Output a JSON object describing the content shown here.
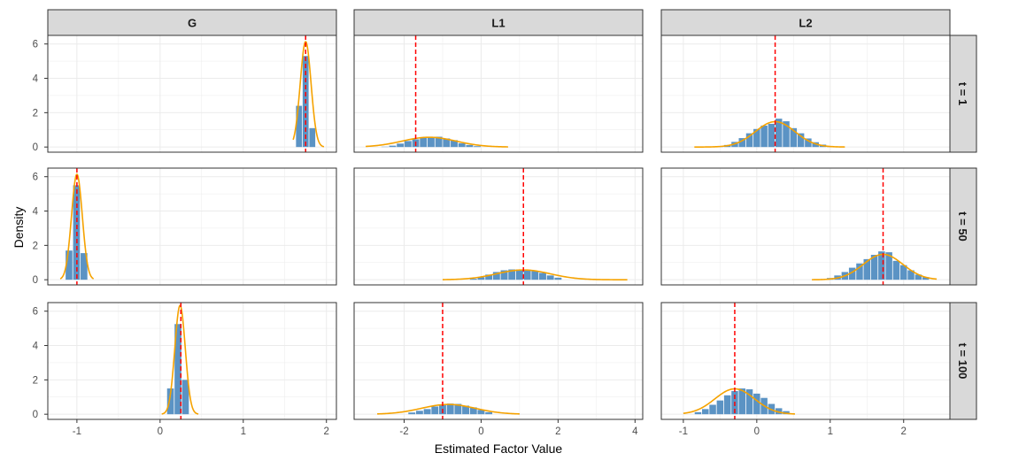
{
  "chart_data": {
    "type": "histogram-facet",
    "xlabel": "Estimated Factor Value",
    "ylabel": "Density",
    "colors": {
      "bars": "#5b93c4",
      "density": "#f5a200",
      "reference": "#ff0000",
      "strip_fill": "#d9d9d9",
      "grid": "#ebebeb",
      "panel_border": "#333333"
    },
    "y_ticks": [
      "0",
      "2",
      "4",
      "6"
    ],
    "ylim": [
      -0.3,
      6.5
    ],
    "columns": [
      {
        "label": "G",
        "xlim": [
          -1.35,
          2.12
        ],
        "x_ticks": [
          -1,
          0,
          1,
          2
        ],
        "x_tick_labels": [
          "-1",
          "0",
          "1",
          "2"
        ]
      },
      {
        "label": "L1",
        "xlim": [
          -3.3,
          4.2
        ],
        "x_ticks": [
          -2,
          0,
          2,
          4
        ],
        "x_tick_labels": [
          "-2",
          "0",
          "2",
          "4"
        ]
      },
      {
        "label": "L2",
        "xlim": [
          -1.3,
          2.63
        ],
        "x_ticks": [
          -1,
          0,
          1,
          2
        ],
        "x_tick_labels": [
          "-1",
          "0",
          "1",
          "2"
        ]
      }
    ],
    "rows": [
      {
        "label": "t = 1",
        "panels": [
          {
            "reference": 1.75,
            "mean": 1.75,
            "sd": 0.065,
            "curve_range": [
              1.6,
              1.97
            ],
            "bin_start": 1.63,
            "bin_width": 0.08,
            "bars": [
              2.4,
              5.3,
              1.1
            ]
          },
          {
            "reference": -1.7,
            "mean": -1.35,
            "sd": 0.7,
            "curve_range": [
              -3.0,
              0.7
            ],
            "bin_start": -2.6,
            "bin_width": 0.2,
            "bars": [
              0.02,
              0.08,
              0.2,
              0.35,
              0.45,
              0.55,
              0.6,
              0.6,
              0.5,
              0.4,
              0.22,
              0.12,
              0.05
            ]
          },
          {
            "reference": 0.25,
            "mean": 0.25,
            "sd": 0.27,
            "curve_range": [
              -0.85,
              1.2
            ],
            "bin_start": -0.55,
            "bin_width": 0.1,
            "bars": [
              0.04,
              0.12,
              0.3,
              0.52,
              0.8,
              1.05,
              1.25,
              1.35,
              1.65,
              1.5,
              1.1,
              0.8,
              0.5,
              0.28,
              0.14,
              0.06
            ]
          }
        ]
      },
      {
        "label": "t = 50",
        "panels": [
          {
            "reference": -1.0,
            "mean": -1.0,
            "sd": 0.065,
            "curve_range": [
              -1.2,
              -0.8
            ],
            "bin_start": -1.14,
            "bin_width": 0.09,
            "bars": [
              1.7,
              5.5,
              1.55
            ]
          },
          {
            "reference": 1.1,
            "mean": 1.1,
            "sd": 0.7,
            "curve_range": [
              -1.0,
              3.8
            ],
            "bin_start": -0.3,
            "bin_width": 0.2,
            "bars": [
              0.06,
              0.15,
              0.3,
              0.45,
              0.55,
              0.6,
              0.6,
              0.55,
              0.5,
              0.4,
              0.25,
              0.12
            ]
          },
          {
            "reference": 1.72,
            "mean": 1.72,
            "sd": 0.27,
            "curve_range": [
              0.75,
              2.45
            ],
            "bin_start": 0.95,
            "bin_width": 0.1,
            "bars": [
              0.1,
              0.25,
              0.45,
              0.7,
              0.95,
              1.2,
              1.45,
              1.65,
              1.6,
              1.1,
              0.85,
              0.55,
              0.3,
              0.15
            ]
          }
        ]
      },
      {
        "label": "t = 100",
        "panels": [
          {
            "reference": 0.25,
            "mean": 0.24,
            "sd": 0.063,
            "curve_range": [
              0.02,
              0.46
            ],
            "bin_start": 0.08,
            "bin_width": 0.09,
            "bars": [
              1.5,
              5.25,
              2.0
            ]
          },
          {
            "reference": -1.0,
            "mean": -0.85,
            "sd": 0.7,
            "curve_range": [
              -2.7,
              1.0
            ],
            "bin_start": -1.9,
            "bin_width": 0.2,
            "bars": [
              0.1,
              0.2,
              0.3,
              0.45,
              0.55,
              0.62,
              0.6,
              0.5,
              0.4,
              0.25,
              0.12
            ]
          },
          {
            "reference": -0.3,
            "mean": -0.3,
            "sd": 0.27,
            "curve_range": [
              -1.0,
              0.52
            ],
            "bin_start": -0.85,
            "bin_width": 0.1,
            "bars": [
              0.12,
              0.3,
              0.55,
              0.8,
              1.1,
              1.35,
              1.5,
              1.45,
              1.2,
              0.95,
              0.6,
              0.35,
              0.18
            ]
          }
        ]
      }
    ]
  }
}
